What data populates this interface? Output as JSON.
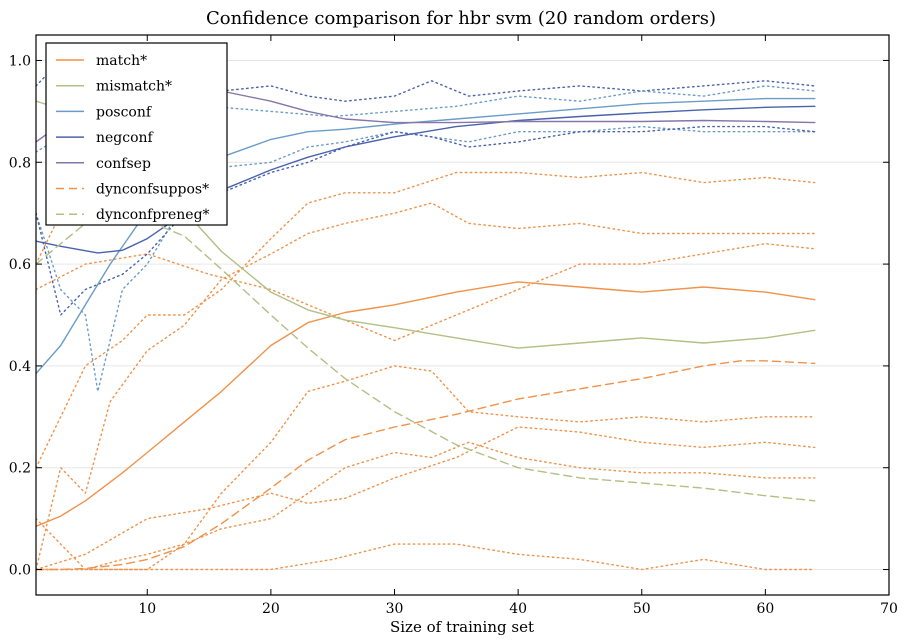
{
  "chart_data": {
    "type": "line",
    "title": "Confidence comparison for hbr svm (20 random orders)",
    "xlabel": "Size of training set",
    "ylabel": "",
    "xlim": [
      1,
      70
    ],
    "ylim": [
      -0.05,
      1.05
    ],
    "xticks": [
      10,
      20,
      30,
      40,
      50,
      60,
      70
    ],
    "yticks": [
      0.0,
      0.2,
      0.4,
      0.6,
      0.8,
      1.0
    ],
    "grid": "horizontal",
    "legend_position": "top-left",
    "series": [
      {
        "name": "match*",
        "color": "#f0924a",
        "dash": "solid",
        "x": [
          1,
          3,
          5,
          8,
          10,
          13,
          16,
          20,
          23,
          26,
          30,
          35,
          40,
          45,
          50,
          55,
          60,
          64
        ],
        "y": [
          0.085,
          0.105,
          0.135,
          0.19,
          0.23,
          0.29,
          0.35,
          0.44,
          0.485,
          0.505,
          0.52,
          0.545,
          0.565,
          0.555,
          0.545,
          0.555,
          0.545,
          0.53
        ]
      },
      {
        "name": "mismatch*",
        "color": "#b2bf85",
        "dash": "solid",
        "x": [
          1,
          3,
          5,
          8,
          10,
          13,
          16,
          20,
          23,
          26,
          30,
          35,
          40,
          45,
          50,
          55,
          60,
          64
        ],
        "y": [
          0.92,
          0.905,
          0.88,
          0.83,
          0.78,
          0.705,
          0.625,
          0.545,
          0.51,
          0.49,
          0.475,
          0.455,
          0.435,
          0.445,
          0.455,
          0.445,
          0.455,
          0.47
        ]
      },
      {
        "name": "posconf",
        "color": "#6a9cc9",
        "dash": "solid",
        "x": [
          1,
          3,
          5,
          7,
          10,
          13,
          16,
          20,
          23,
          26,
          30,
          35,
          40,
          45,
          50,
          55,
          60,
          64
        ],
        "y": [
          0.385,
          0.44,
          0.52,
          0.6,
          0.705,
          0.765,
          0.81,
          0.845,
          0.86,
          0.865,
          0.875,
          0.885,
          0.895,
          0.905,
          0.915,
          0.92,
          0.925,
          0.925
        ]
      },
      {
        "name": "negconf",
        "color": "#4a62ad",
        "dash": "solid",
        "x": [
          1,
          3,
          6,
          8,
          10,
          13,
          16,
          20,
          23,
          26,
          30,
          35,
          40,
          45,
          50,
          55,
          60,
          64
        ],
        "y": [
          0.645,
          0.635,
          0.622,
          0.627,
          0.65,
          0.7,
          0.745,
          0.785,
          0.81,
          0.83,
          0.85,
          0.87,
          0.882,
          0.89,
          0.897,
          0.903,
          0.908,
          0.91
        ]
      },
      {
        "name": "confsep",
        "color": "#8576a8",
        "dash": "solid",
        "x": [
          1,
          3,
          5,
          8,
          10,
          13,
          16,
          20,
          23,
          26,
          30,
          35,
          40,
          45,
          50,
          55,
          60,
          64
        ],
        "y": [
          0.84,
          0.875,
          0.915,
          0.935,
          0.945,
          0.95,
          0.94,
          0.92,
          0.9,
          0.885,
          0.878,
          0.878,
          0.88,
          0.88,
          0.88,
          0.882,
          0.88,
          0.878
        ]
      },
      {
        "name": "dynconfsuppos*",
        "color": "#f0924a",
        "dash": "dashed",
        "x": [
          1,
          3,
          5,
          8,
          10,
          13,
          16,
          20,
          23,
          26,
          30,
          35,
          40,
          45,
          50,
          55,
          58,
          60,
          64
        ],
        "y": [
          0.0,
          0.0,
          0.002,
          0.01,
          0.02,
          0.045,
          0.09,
          0.16,
          0.215,
          0.255,
          0.28,
          0.305,
          0.335,
          0.355,
          0.375,
          0.4,
          0.41,
          0.41,
          0.405
        ]
      },
      {
        "name": "dynconfpreneg*",
        "color": "#b2bf85",
        "dash": "dashed",
        "x": [
          1,
          3,
          5,
          8,
          10,
          13,
          16,
          20,
          23,
          26,
          30,
          35,
          40,
          45,
          50,
          55,
          60,
          64
        ],
        "y": [
          0.6,
          0.64,
          0.68,
          0.695,
          0.685,
          0.655,
          0.59,
          0.5,
          0.435,
          0.375,
          0.31,
          0.245,
          0.2,
          0.18,
          0.17,
          0.16,
          0.145,
          0.135
        ]
      },
      {
        "color": "#f0924a",
        "dash": "dotted",
        "x": [
          1,
          3,
          5,
          7,
          10,
          13,
          16,
          20,
          23,
          26,
          30,
          33,
          36,
          40,
          45,
          50,
          55,
          60,
          64
        ],
        "y": [
          0.0,
          0.2,
          0.15,
          0.33,
          0.43,
          0.48,
          0.57,
          0.62,
          0.66,
          0.68,
          0.7,
          0.72,
          0.68,
          0.67,
          0.68,
          0.66,
          0.66,
          0.66,
          0.66
        ]
      },
      {
        "color": "#f0924a",
        "dash": "dotted",
        "x": [
          1,
          3,
          5,
          7,
          10,
          13,
          16,
          20,
          23,
          26,
          30,
          33,
          36,
          40,
          45,
          50,
          55,
          60,
          64
        ],
        "y": [
          0.1,
          0.05,
          0.0,
          0.0,
          0.0,
          0.05,
          0.15,
          0.25,
          0.35,
          0.37,
          0.4,
          0.39,
          0.31,
          0.3,
          0.29,
          0.3,
          0.29,
          0.3,
          0.3
        ]
      },
      {
        "color": "#f0924a",
        "dash": "dotted",
        "x": [
          1,
          5,
          8,
          10,
          13,
          16,
          20,
          23,
          26,
          30,
          33,
          36,
          40,
          45,
          50,
          55,
          60,
          64
        ],
        "y": [
          0.0,
          0.0,
          0.02,
          0.03,
          0.05,
          0.08,
          0.1,
          0.15,
          0.2,
          0.23,
          0.22,
          0.25,
          0.22,
          0.2,
          0.19,
          0.19,
          0.18,
          0.18
        ]
      },
      {
        "color": "#f0924a",
        "dash": "dotted",
        "x": [
          1,
          5,
          10,
          15,
          20,
          25,
          30,
          35,
          40,
          45,
          50,
          55,
          60,
          64
        ],
        "y": [
          0.0,
          0.0,
          0.0,
          0.0,
          0.0,
          0.02,
          0.05,
          0.05,
          0.03,
          0.02,
          0.0,
          0.02,
          0.0,
          0.0
        ]
      },
      {
        "color": "#f0924a",
        "dash": "dotted",
        "x": [
          1,
          5,
          10,
          15,
          20,
          23,
          26,
          30,
          35,
          40,
          45,
          50,
          55,
          60,
          64
        ],
        "y": [
          0.0,
          0.03,
          0.1,
          0.12,
          0.15,
          0.13,
          0.14,
          0.18,
          0.22,
          0.28,
          0.27,
          0.25,
          0.24,
          0.25,
          0.24
        ]
      },
      {
        "color": "#f0924a",
        "dash": "dotted",
        "x": [
          1,
          5,
          8,
          10,
          13,
          16,
          20,
          23,
          26,
          30,
          35,
          40,
          45,
          50,
          55,
          60,
          64
        ],
        "y": [
          0.2,
          0.4,
          0.45,
          0.5,
          0.5,
          0.55,
          0.65,
          0.72,
          0.74,
          0.74,
          0.78,
          0.78,
          0.77,
          0.78,
          0.76,
          0.77,
          0.76
        ]
      },
      {
        "color": "#f0924a",
        "dash": "dotted",
        "x": [
          1,
          5,
          10,
          15,
          20,
          25,
          30,
          35,
          40,
          45,
          50,
          55,
          60,
          64
        ],
        "y": [
          0.55,
          0.6,
          0.62,
          0.58,
          0.55,
          0.5,
          0.45,
          0.5,
          0.55,
          0.6,
          0.6,
          0.62,
          0.64,
          0.63
        ]
      },
      {
        "color": "#6a9cc9",
        "dash": "dotted",
        "x": [
          1,
          3,
          5,
          6,
          8,
          10,
          13,
          16,
          20,
          23,
          26,
          30,
          33,
          36,
          40,
          45,
          50,
          55,
          60,
          64
        ],
        "y": [
          0.7,
          0.55,
          0.5,
          0.35,
          0.55,
          0.6,
          0.72,
          0.79,
          0.8,
          0.83,
          0.84,
          0.86,
          0.85,
          0.84,
          0.86,
          0.86,
          0.87,
          0.86,
          0.86,
          0.86
        ]
      },
      {
        "color": "#4a62ad",
        "dash": "dotted",
        "x": [
          1,
          3,
          5,
          8,
          10,
          13,
          16,
          20,
          23,
          26,
          30,
          33,
          36,
          40,
          45,
          50,
          55,
          60,
          64
        ],
        "y": [
          0.7,
          0.5,
          0.55,
          0.58,
          0.62,
          0.7,
          0.74,
          0.78,
          0.8,
          0.83,
          0.86,
          0.85,
          0.83,
          0.84,
          0.86,
          0.86,
          0.87,
          0.87,
          0.86
        ]
      },
      {
        "color": "#4a62ad",
        "dash": "dotted",
        "x": [
          1,
          3,
          5,
          8,
          10,
          13,
          16,
          20,
          23,
          26,
          30,
          33,
          36,
          40,
          45,
          50,
          55,
          60,
          64
        ],
        "y": [
          0.95,
          1.0,
          0.98,
          0.97,
          0.96,
          0.95,
          0.94,
          0.95,
          0.93,
          0.92,
          0.93,
          0.96,
          0.93,
          0.94,
          0.95,
          0.94,
          0.95,
          0.96,
          0.95
        ]
      },
      {
        "color": "#6a9cc9",
        "dash": "dotted",
        "x": [
          1,
          5,
          10,
          15,
          20,
          25,
          30,
          35,
          40,
          45,
          50,
          55,
          60,
          64
        ],
        "y": [
          0.82,
          0.88,
          0.9,
          0.91,
          0.9,
          0.89,
          0.9,
          0.91,
          0.93,
          0.92,
          0.94,
          0.93,
          0.95,
          0.94
        ]
      },
      {
        "color": "#f0924a",
        "dash": "dotted",
        "x": [
          1,
          3,
          5,
          8,
          10,
          13
        ],
        "y": [
          0.6,
          0.7,
          0.75,
          0.8,
          0.85,
          0.88
        ]
      }
    ]
  }
}
